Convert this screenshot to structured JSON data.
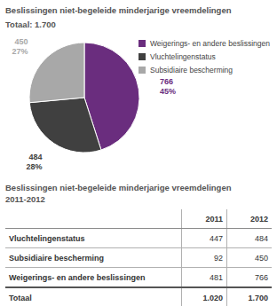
{
  "chart_data": {
    "type": "pie",
    "title": "Beslissingen niet-begeleide minderjarige vreemdelingen",
    "subtitle": "Totaal: 1.700",
    "categories": [
      "Weigerings- en andere beslissingen",
      "Vluchtelingenstatus",
      "Subsidiaire bescherming"
    ],
    "values": [
      766,
      484,
      450
    ],
    "percentages": [
      45,
      28,
      27
    ],
    "percentage_labels": [
      "45%",
      "28%",
      "27%"
    ],
    "colors": [
      "#6a2d7e",
      "#404040",
      "#a8a8a8"
    ],
    "data_labels": true,
    "legend": "right"
  },
  "table": {
    "title": [
      "Beslissingen niet-begeleide minderjarige vreemdelingen",
      "2011-2012"
    ],
    "columns": [
      "2011",
      "2012"
    ],
    "rows": [
      {
        "label": "Vluchtelingenstatus",
        "values": [
          447,
          484
        ]
      },
      {
        "label": "Subsidiaire bescherming",
        "values": [
          92,
          450
        ]
      },
      {
        "label": "Weigerings- en andere beslissingen",
        "values": [
          481,
          766
        ]
      }
    ],
    "total": {
      "label": "Totaal",
      "values": [
        "1.020",
        "1.700"
      ]
    }
  }
}
